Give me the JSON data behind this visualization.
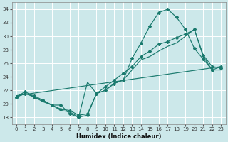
{
  "background_color": "#cce8ea",
  "grid_color": "#ffffff",
  "line_color": "#1a7a6e",
  "xlabel": "Humidex (Indice chaleur)",
  "xlim": [
    -0.5,
    23.5
  ],
  "ylim": [
    17.0,
    35.0
  ],
  "yticks": [
    18,
    20,
    22,
    24,
    26,
    28,
    30,
    32,
    34
  ],
  "xticks": [
    0,
    1,
    2,
    3,
    4,
    5,
    6,
    7,
    8,
    9,
    10,
    11,
    12,
    13,
    14,
    15,
    16,
    17,
    18,
    19,
    20,
    21,
    22,
    23
  ],
  "curve1_x": [
    0,
    1,
    2,
    3,
    4,
    5,
    6,
    7,
    8,
    9,
    10,
    11,
    12,
    13,
    14,
    15,
    16,
    17,
    18,
    19,
    20,
    21,
    22,
    23
  ],
  "curve1_y": [
    21.0,
    21.8,
    21.0,
    20.5,
    19.8,
    19.8,
    18.5,
    18.0,
    18.3,
    21.5,
    22.0,
    23.0,
    23.5,
    26.7,
    29.0,
    31.5,
    33.5,
    34.0,
    32.8,
    31.0,
    28.2,
    26.6,
    25.0,
    25.5
  ],
  "curve2_x": [
    0,
    1,
    2,
    3,
    4,
    5,
    6,
    7,
    8,
    9,
    10,
    11,
    12,
    13,
    14,
    15,
    16,
    17,
    18,
    19,
    20,
    21,
    22,
    23
  ],
  "curve2_y": [
    21.0,
    21.5,
    21.2,
    20.5,
    19.8,
    19.2,
    19.0,
    18.3,
    18.5,
    21.5,
    22.5,
    23.5,
    24.5,
    25.5,
    27.0,
    27.8,
    28.8,
    29.2,
    29.8,
    30.3,
    31.0,
    27.2,
    25.5,
    25.3
  ],
  "curve3_x": [
    0,
    23
  ],
  "curve3_y": [
    21.2,
    25.5
  ],
  "curve4_x": [
    0,
    1,
    2,
    3,
    4,
    5,
    6,
    7,
    8,
    9,
    10,
    11,
    12,
    13,
    14,
    15,
    16,
    17,
    18,
    19,
    20,
    21,
    22,
    23
  ],
  "curve4_y": [
    21.0,
    21.5,
    21.0,
    20.3,
    19.8,
    19.0,
    18.8,
    18.0,
    23.2,
    21.5,
    22.0,
    23.0,
    23.5,
    25.0,
    26.5,
    27.0,
    27.8,
    28.5,
    29.0,
    30.0,
    31.0,
    27.0,
    25.0,
    25.0
  ]
}
